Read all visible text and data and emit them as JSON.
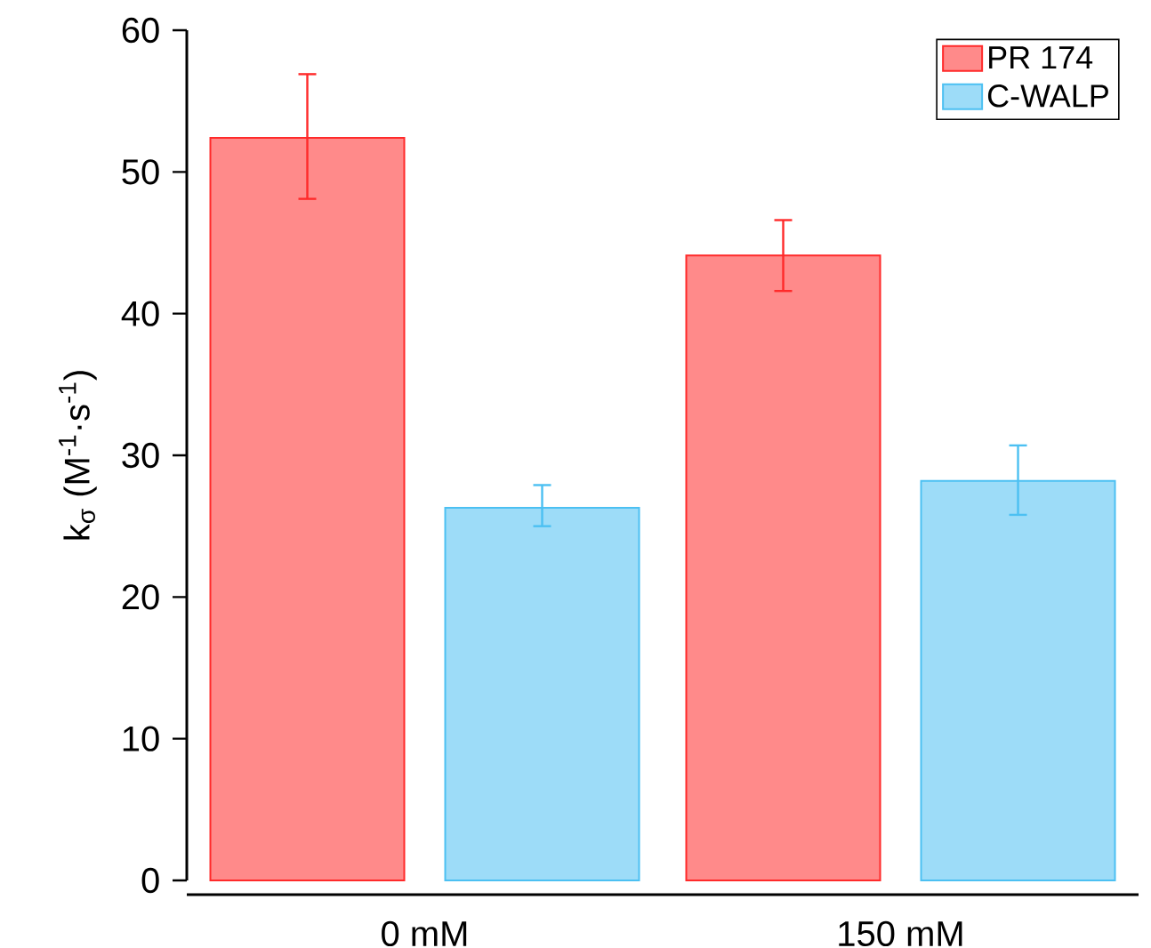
{
  "chart_data": {
    "type": "bar",
    "ylabel": "k$_{σ}$ (M$^{-1}$·s$^{-1}$)",
    "categories": [
      "0 mM",
      "150 mM"
    ],
    "series": [
      {
        "name": "PR 174",
        "color": "#ff2a2a",
        "values": [
          52.4,
          44.1
        ],
        "errors": [
          [
            48.1,
            56.9
          ],
          [
            41.6,
            46.6
          ]
        ]
      },
      {
        "name": "C-WALP",
        "color": "#4cc0f2",
        "values": [
          26.3,
          28.2
        ],
        "errors": [
          [
            25.0,
            27.9
          ],
          [
            25.8,
            30.7
          ]
        ]
      }
    ],
    "ylim": [
      0,
      60
    ],
    "yticks": [
      0,
      10,
      20,
      30,
      40,
      50,
      60
    ],
    "grid": false,
    "legend": "top right"
  }
}
